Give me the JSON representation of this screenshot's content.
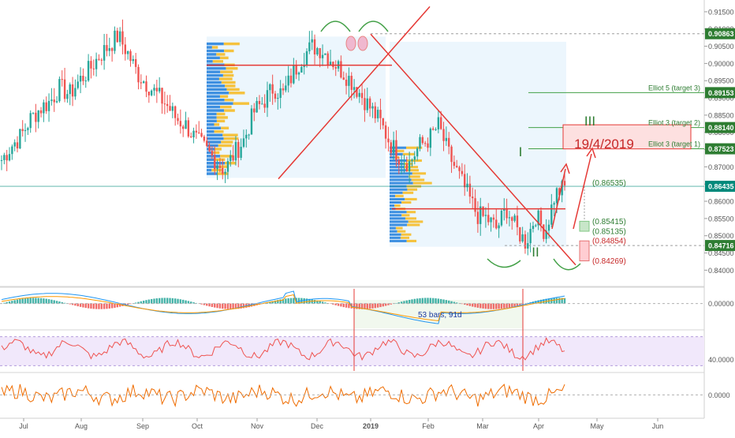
{
  "chart_data": [
    {
      "type": "line",
      "panel": "price",
      "title": "",
      "xlabel": "",
      "ylabel": "",
      "ylim": [
        0.8355,
        0.9175
      ],
      "x_ticks": [
        "Jul",
        "Aug",
        "Sep",
        "Oct",
        "Nov",
        "Dec",
        "2019",
        "Feb",
        "Mar",
        "Apr",
        "May",
        "Jun"
      ],
      "y_ticks": [
        0.915,
        0.91,
        0.905,
        0.9,
        0.895,
        0.89,
        0.885,
        0.88,
        0.875,
        0.87,
        0.865,
        0.86,
        0.855,
        0.85,
        0.845,
        0.84
      ],
      "y_tick_labels": [
        "0.91500",
        "0.91000",
        "0.90500",
        "0.90000",
        "0.89500",
        "0.89000",
        "0.88500",
        "0.88000",
        "0.87500",
        "0.87000",
        "0.86500",
        "0.86000",
        "0.85500",
        "0.85000",
        "0.84500",
        "0.84000"
      ],
      "price_badges": [
        {
          "value": 0.90863,
          "label": "0.90863"
        },
        {
          "value": 0.89153,
          "label": "0.89153"
        },
        {
          "value": 0.8814,
          "label": "0.88140"
        },
        {
          "value": 0.87523,
          "label": "0.87523"
        },
        {
          "value": 0.86435,
          "label": "0.86435"
        },
        {
          "value": 0.84716,
          "label": "0.84716"
        }
      ],
      "horizontal_levels": [
        {
          "value": 0.89153,
          "label": "Elliot 5 (target 3)"
        },
        {
          "value": 0.8814,
          "label": "Elliot 3 (target 2)"
        },
        {
          "value": 0.87523,
          "label": "Elliot 3 (target 1)"
        }
      ],
      "projection_labels": [
        "(0.86535)",
        "(0.85415)",
        "(0.85135)",
        "(0.84854)",
        "(0.84269)"
      ],
      "wave_labels": [
        "I",
        "II",
        "III"
      ],
      "target_box_label": "19/4/2019",
      "series": [
        {
          "color": "#26a69a",
          "values": [
            0.872,
            0.876,
            0.879,
            0.884,
            0.887,
            0.889,
            0.893,
            0.891,
            0.895,
            0.898,
            0.902,
            0.905,
            0.908,
            0.903,
            0.897,
            0.894,
            0.891,
            0.888,
            0.884,
            0.882,
            0.878,
            0.875,
            0.872,
            0.869,
            0.874,
            0.878,
            0.886,
            0.889,
            0.893,
            0.891,
            0.897,
            0.902,
            0.905,
            0.904,
            0.901,
            0.898,
            0.895,
            0.891,
            0.887,
            0.883,
            0.877,
            0.873,
            0.871,
            0.876,
            0.878,
            0.882,
            0.874,
            0.868,
            0.862,
            0.856,
            0.855,
            0.852,
            0.858,
            0.852,
            0.848,
            0.856,
            0.851,
            0.862,
            0.864
          ]
        }
      ]
    },
    {
      "type": "bar",
      "panel": "macd",
      "ylim": [
        -0.011,
        0.0065
      ],
      "y_ticks": [
        0.0
      ],
      "y_tick_labels": [
        "0.00000"
      ],
      "measure_label": "53 bars, 91d"
    },
    {
      "type": "line",
      "panel": "rsi",
      "ylim": [
        29,
        67
      ],
      "y_ticks": [
        40
      ],
      "y_tick_labels": [
        "40.0000"
      ]
    },
    {
      "type": "line",
      "panel": "oscillator",
      "ylim": [
        -0.011,
        0.0105
      ],
      "y_ticks": [
        0.0
      ],
      "y_tick_labels": [
        "0.0000"
      ]
    }
  ],
  "colors": {
    "up": "#26a69a",
    "down": "#ef5350",
    "trend": "#e53935",
    "level": "#43a047",
    "badge": "#2e7d32",
    "current": "#00897b",
    "volume_profile": "#dceefb"
  }
}
